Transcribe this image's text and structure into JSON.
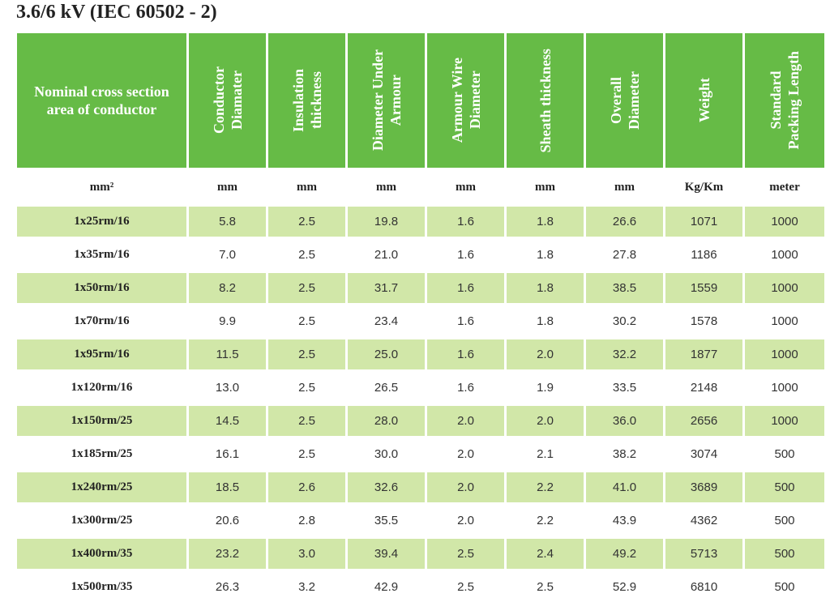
{
  "title": "3.6/6 kV (IEC 60502 - 2)",
  "colors": {
    "header_bg": "#66bb46",
    "row_shade": "#d1e7a8"
  },
  "table": {
    "headers": [
      "Nominal cross section\narea of conductor",
      "Conductor\nDiamater",
      "Insulation\nthickness",
      "Diameter Under\nArmour",
      "Armour Wire\nDiameter",
      "Sheath thickness",
      "Overall\nDiameter",
      "Weight",
      "Standard\nPacking Length"
    ],
    "units": [
      "mm²",
      "mm",
      "mm",
      "mm",
      "mm",
      "mm",
      "mm",
      "Kg/Km",
      "meter"
    ],
    "rows": [
      [
        "1x25rm/16",
        "5.8",
        "2.5",
        "19.8",
        "1.6",
        "1.8",
        "26.6",
        "1071",
        "1000"
      ],
      [
        "1x35rm/16",
        "7.0",
        "2.5",
        "21.0",
        "1.6",
        "1.8",
        "27.8",
        "1186",
        "1000"
      ],
      [
        "1x50rm/16",
        "8.2",
        "2.5",
        "31.7",
        "1.6",
        "1.8",
        "38.5",
        "1559",
        "1000"
      ],
      [
        "1x70rm/16",
        "9.9",
        "2.5",
        "23.4",
        "1.6",
        "1.8",
        "30.2",
        "1578",
        "1000"
      ],
      [
        "1x95rm/16",
        "11.5",
        "2.5",
        "25.0",
        "1.6",
        "2.0",
        "32.2",
        "1877",
        "1000"
      ],
      [
        "1x120rm/16",
        "13.0",
        "2.5",
        "26.5",
        "1.6",
        "1.9",
        "33.5",
        "2148",
        "1000"
      ],
      [
        "1x150rm/25",
        "14.5",
        "2.5",
        "28.0",
        "2.0",
        "2.0",
        "36.0",
        "2656",
        "1000"
      ],
      [
        "1x185rm/25",
        "16.1",
        "2.5",
        "30.0",
        "2.0",
        "2.1",
        "38.2",
        "3074",
        "500"
      ],
      [
        "1x240rm/25",
        "18.5",
        "2.6",
        "32.6",
        "2.0",
        "2.2",
        "41.0",
        "3689",
        "500"
      ],
      [
        "1x300rm/25",
        "20.6",
        "2.8",
        "35.5",
        "2.0",
        "2.2",
        "43.9",
        "4362",
        "500"
      ],
      [
        "1x400rm/35",
        "23.2",
        "3.0",
        "39.4",
        "2.5",
        "2.4",
        "49.2",
        "5713",
        "500"
      ],
      [
        "1x500rm/35",
        "26.3",
        "3.2",
        "42.9",
        "2.5",
        "2.5",
        "52.9",
        "6810",
        "500"
      ]
    ]
  }
}
